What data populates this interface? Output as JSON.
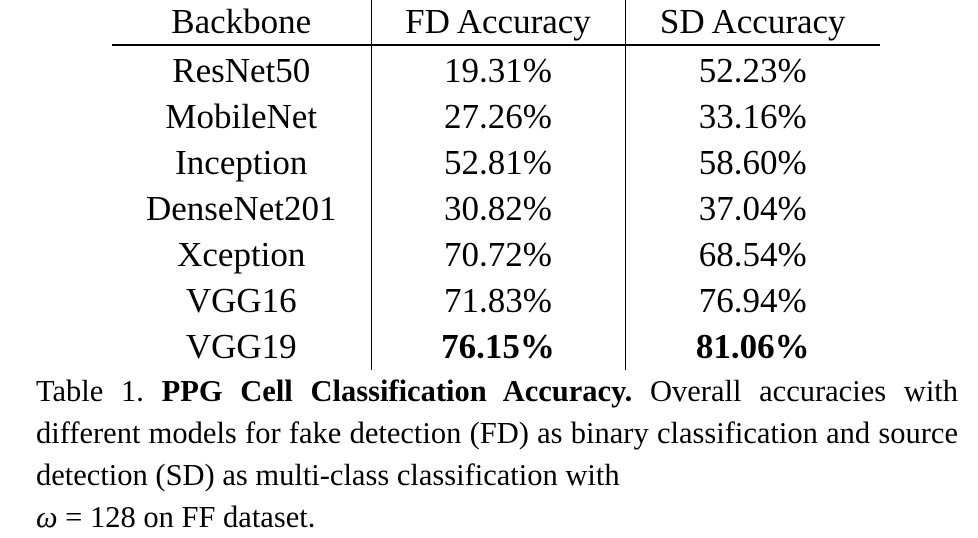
{
  "table": {
    "headers": [
      "Backbone",
      "FD Accuracy",
      "SD Accuracy"
    ],
    "rows": [
      {
        "backbone": "ResNet50",
        "fd": "19.31%",
        "sd": "52.23%"
      },
      {
        "backbone": "MobileNet",
        "fd": "27.26%",
        "sd": "33.16%"
      },
      {
        "backbone": "Inception",
        "fd": "52.81%",
        "sd": "58.60%"
      },
      {
        "backbone": "DenseNet201",
        "fd": "30.82%",
        "sd": "37.04%"
      },
      {
        "backbone": "Xception",
        "fd": "70.72%",
        "sd": "68.54%"
      },
      {
        "backbone": "VGG16",
        "fd": "71.83%",
        "sd": "76.94%"
      },
      {
        "backbone": "VGG19",
        "fd": "76.15%",
        "sd": "81.06%"
      }
    ]
  },
  "caption": {
    "label": "Table 1.",
    "title": "PPG Cell Classification Accuracy.",
    "body": "Overall accuracies with different models for fake detection (FD) as binary classification and source detection (SD) as multi-class classification with",
    "math_symbol": "ω",
    "math_rest": " = 128 on FF dataset."
  }
}
